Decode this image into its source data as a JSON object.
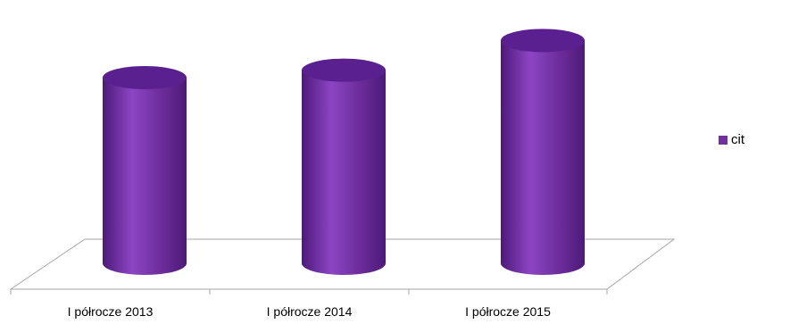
{
  "chart_data": {
    "type": "bar",
    "style": "3d-cylinder",
    "title": "",
    "xlabel": "",
    "ylabel": "",
    "categories": [
      "I półrocze 2013",
      "I półrocze 2014",
      "I półrocze 2015"
    ],
    "series": [
      {
        "name": "cit",
        "values": [
          100,
          104,
          120
        ],
        "color": "#7030a0"
      }
    ],
    "ylim": [
      0,
      130
    ],
    "grid": false,
    "legend": "right",
    "colors": {
      "bar": "#7030a0",
      "bar_light": "#8c45c4",
      "bar_dark": "#4d1a78",
      "bar_top": "#5a2090",
      "floor_line": "#a6a6a6"
    }
  }
}
